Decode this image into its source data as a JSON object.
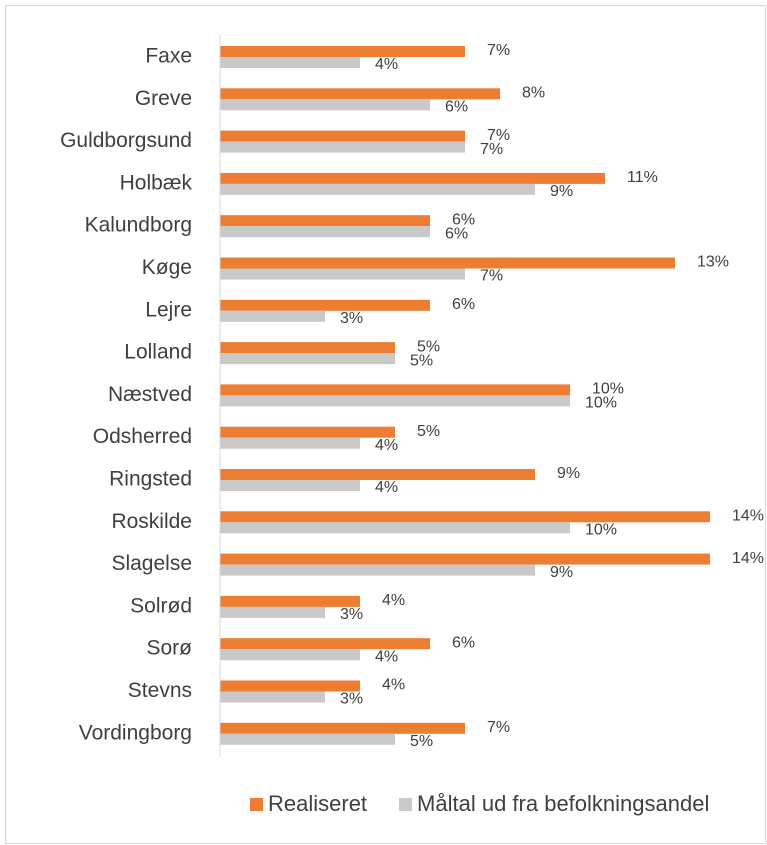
{
  "chart_data": {
    "type": "hbar",
    "categories": [
      "Faxe",
      "Greve",
      "Guldborgsund",
      "Holbæk",
      "Kalundborg",
      "Køge",
      "Lejre",
      "Lolland",
      "Næstved",
      "Odsherred",
      "Ringsted",
      "Roskilde",
      "Slagelse",
      "Solrød",
      "Sorø",
      "Stevns",
      "Vordingborg"
    ],
    "series": [
      {
        "name": "Realiseret",
        "color": "#ed7d31",
        "values": [
          7,
          8,
          7,
          11,
          6,
          13,
          6,
          5,
          10,
          5,
          9,
          14,
          14,
          4,
          6,
          4,
          7
        ],
        "value_labels": [
          "7%",
          "8%",
          "7%",
          "11%",
          "6%",
          "13%",
          "6%",
          "5%",
          "10%",
          "5%",
          "9%",
          "14%",
          "14%",
          "4%",
          "6%",
          "4%",
          "7%"
        ]
      },
      {
        "name": "Måltal ud fra befolkningsandel",
        "color": "#c9c9c9",
        "values": [
          4,
          6,
          7,
          9,
          6,
          7,
          3,
          5,
          10,
          4,
          4,
          10,
          9,
          3,
          4,
          3,
          5
        ],
        "value_labels": [
          "4%",
          "6%",
          "7%",
          "9%",
          "6%",
          "7%",
          "3%",
          "5%",
          "10%",
          "4%",
          "4%",
          "10%",
          "9%",
          "3%",
          "4%",
          "3%",
          "5%"
        ]
      }
    ],
    "xlim": [
      0,
      14
    ],
    "legend": "bottom"
  }
}
